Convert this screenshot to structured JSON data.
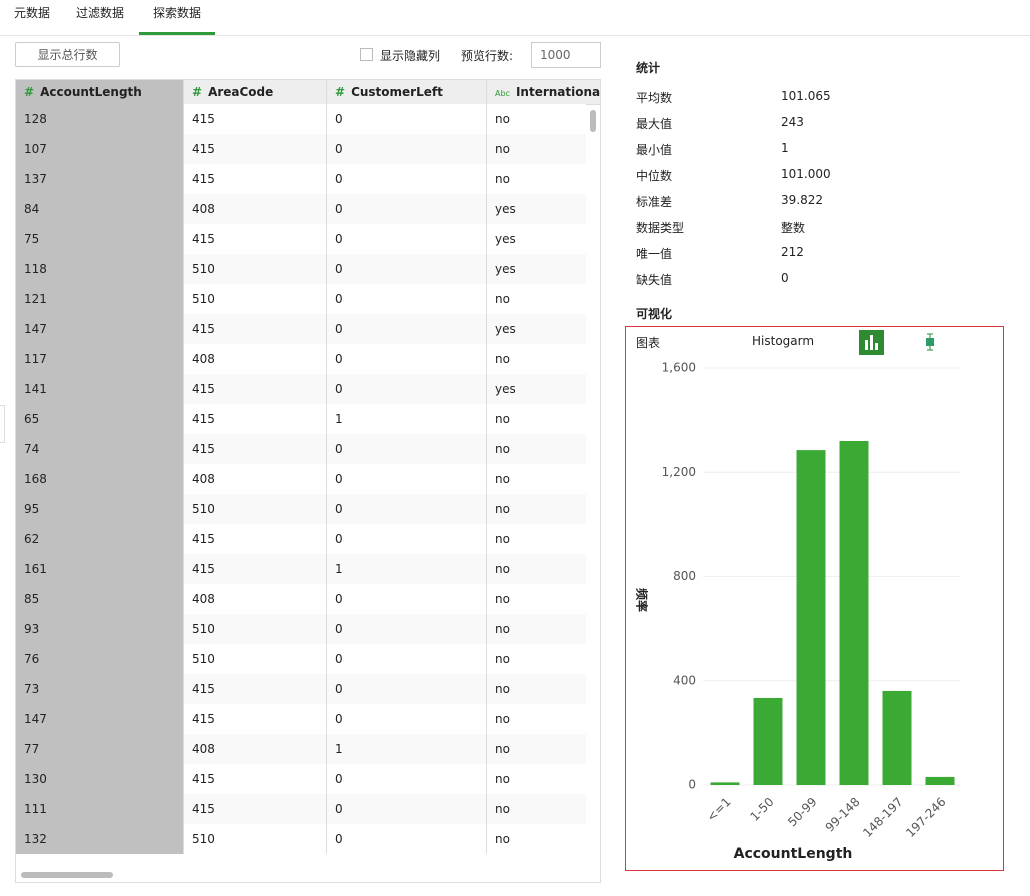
{
  "tabs": [
    "元数据",
    "过滤数据",
    "探索数据"
  ],
  "active_tab": 2,
  "toolbar": {
    "show_rows_button": "显示总行数",
    "show_hidden_label": "显示隐藏列",
    "preview_label": "预览行数:",
    "preview_rows": "1000"
  },
  "table": {
    "columns": [
      {
        "icon": "#",
        "name": "AccountLength"
      },
      {
        "icon": "#",
        "name": "AreaCode"
      },
      {
        "icon": "#",
        "name": "CustomerLeft"
      },
      {
        "icon": "Abc",
        "name": "InternationalPlan"
      }
    ],
    "rows": [
      [
        128,
        415,
        0,
        "no"
      ],
      [
        107,
        415,
        0,
        "no"
      ],
      [
        137,
        415,
        0,
        "no"
      ],
      [
        84,
        408,
        0,
        "yes"
      ],
      [
        75,
        415,
        0,
        "yes"
      ],
      [
        118,
        510,
        0,
        "yes"
      ],
      [
        121,
        510,
        0,
        "no"
      ],
      [
        147,
        415,
        0,
        "yes"
      ],
      [
        117,
        408,
        0,
        "no"
      ],
      [
        141,
        415,
        0,
        "yes"
      ],
      [
        65,
        415,
        1,
        "no"
      ],
      [
        74,
        415,
        0,
        "no"
      ],
      [
        168,
        408,
        0,
        "no"
      ],
      [
        95,
        510,
        0,
        "no"
      ],
      [
        62,
        415,
        0,
        "no"
      ],
      [
        161,
        415,
        1,
        "no"
      ],
      [
        85,
        408,
        0,
        "no"
      ],
      [
        93,
        510,
        0,
        "no"
      ],
      [
        76,
        510,
        0,
        "no"
      ],
      [
        73,
        415,
        0,
        "no"
      ],
      [
        147,
        415,
        0,
        "no"
      ],
      [
        77,
        408,
        1,
        "no"
      ],
      [
        130,
        415,
        0,
        "no"
      ],
      [
        111,
        415,
        0,
        "no"
      ],
      [
        132,
        510,
        0,
        "no"
      ]
    ]
  },
  "stats": {
    "title": "统计",
    "items": [
      {
        "label": "平均数",
        "value": "101.065"
      },
      {
        "label": "最大值",
        "value": "243"
      },
      {
        "label": "最小值",
        "value": "1"
      },
      {
        "label": "中位数",
        "value": "101.000"
      },
      {
        "label": "标准差",
        "value": "39.822"
      },
      {
        "label": "数据类型",
        "value": "整数"
      },
      {
        "label": "唯一值",
        "value": "212"
      },
      {
        "label": "缺失值",
        "value": "0"
      }
    ]
  },
  "visualization": {
    "title": "可视化",
    "chart_label": "图表",
    "chart_kind": "Histogarm"
  },
  "chart_data": {
    "type": "bar",
    "categories": [
      "<=1",
      "1-50",
      "50-99",
      "99-148",
      "148-197",
      "197-246"
    ],
    "values": [
      10,
      334,
      1285,
      1320,
      361,
      31
    ],
    "color": "#3aaa35",
    "ylim": [
      0,
      1600
    ],
    "yticks": [
      0,
      400,
      800,
      {
        "value": 1200,
        "label": "1,200"
      },
      {
        "value": 1600,
        "label": "1,600"
      }
    ],
    "grid": true,
    "xlabel": "AccountLength",
    "ylabel": "频率"
  }
}
